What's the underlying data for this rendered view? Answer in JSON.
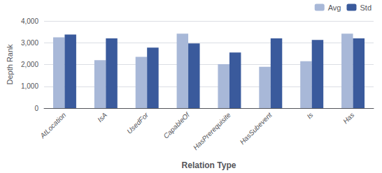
{
  "chart_data": {
    "type": "bar",
    "categories": [
      "AtLocation",
      "IsA",
      "UsedFor",
      "CapableOf",
      "HasPrerequisite",
      "HasSubevent",
      "Is",
      "Has"
    ],
    "series": [
      {
        "name": "Avg",
        "color": "#a8b8d8",
        "values": [
          3250,
          2200,
          2350,
          3420,
          2020,
          1900,
          2150,
          3420
        ]
      },
      {
        "name": "Std",
        "color": "#3a5a9c",
        "values": [
          3380,
          3200,
          2780,
          2970,
          2550,
          3200,
          3130,
          3200
        ]
      }
    ],
    "xlabel": "Relation Type",
    "ylabel": "Depth Rank",
    "ylim": [
      0,
      4000
    ],
    "yticks": [
      0,
      1000,
      2000,
      3000,
      4000
    ],
    "grid": true,
    "legend": "upper right"
  }
}
